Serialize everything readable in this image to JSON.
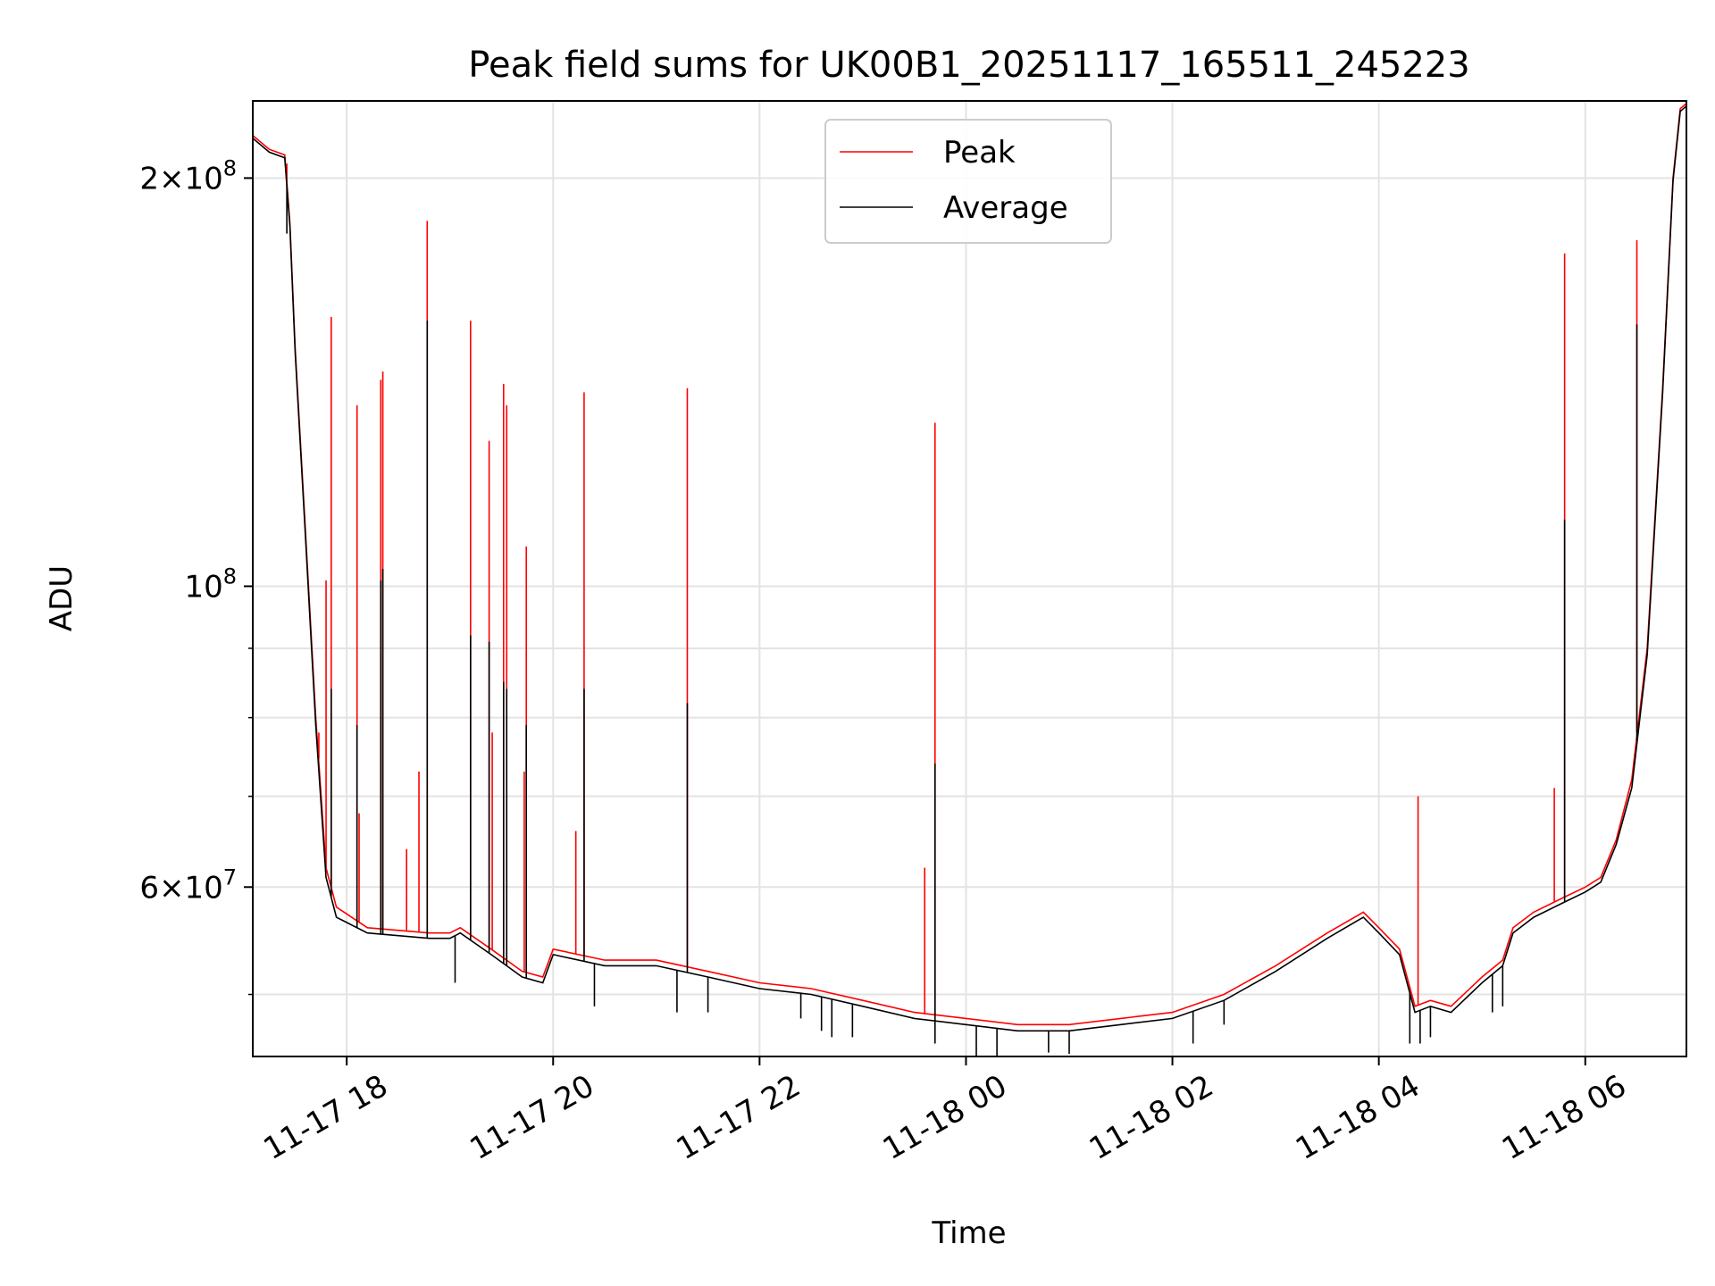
{
  "chart_data": {
    "type": "line",
    "title": "Peak field sums for UK00B1_20251117_165511_245223",
    "xlabel": "Time",
    "ylabel": "ADU",
    "yscale": "log",
    "ylim": [
      45000000,
      228000000
    ],
    "xlim_hours": [
      17.09,
      30.98
    ],
    "grid": true,
    "legend_position": "top-center",
    "x_ticks": [
      {
        "hour": 18,
        "label": "11-17 18"
      },
      {
        "hour": 20,
        "label": "11-17 20"
      },
      {
        "hour": 22,
        "label": "11-17 22"
      },
      {
        "hour": 24,
        "label": "11-18 00"
      },
      {
        "hour": 26,
        "label": "11-18 02"
      },
      {
        "hour": 28,
        "label": "11-18 04"
      },
      {
        "hour": 30,
        "label": "11-18 06"
      }
    ],
    "y_major_ticks": [
      {
        "value": 60000000,
        "mant": "6",
        "exp": "7"
      },
      {
        "value": 100000000,
        "mant": "",
        "exp": "8"
      },
      {
        "value": 200000000,
        "mant": "2",
        "exp": "8"
      }
    ],
    "y_minor_ticks": [
      50000000,
      70000000,
      80000000,
      90000000
    ],
    "series": [
      {
        "name": "Peak",
        "color": "#ff0000",
        "baseline": [
          [
            17.09,
            215
          ],
          [
            17.25,
            210
          ],
          [
            17.4,
            208
          ],
          [
            17.45,
            185
          ],
          [
            17.5,
            150
          ],
          [
            17.6,
            110
          ],
          [
            17.7,
            80
          ],
          [
            17.8,
            62
          ],
          [
            17.9,
            58
          ],
          [
            18.2,
            56
          ],
          [
            18.8,
            55.5
          ],
          [
            19.0,
            55.5
          ],
          [
            19.1,
            56
          ],
          [
            19.4,
            54
          ],
          [
            19.7,
            52
          ],
          [
            19.9,
            51.5
          ],
          [
            20.0,
            54
          ],
          [
            20.5,
            53
          ],
          [
            21.0,
            53
          ],
          [
            21.5,
            52
          ],
          [
            22.0,
            51
          ],
          [
            22.5,
            50.5
          ],
          [
            23.0,
            49.5
          ],
          [
            23.5,
            48.5
          ],
          [
            24.0,
            48
          ],
          [
            24.5,
            47.5
          ],
          [
            25.0,
            47.5
          ],
          [
            25.5,
            48
          ],
          [
            26.0,
            48.5
          ],
          [
            26.5,
            50
          ],
          [
            27.0,
            52.5
          ],
          [
            27.5,
            55.5
          ],
          [
            27.85,
            57.5
          ],
          [
            28.0,
            56
          ],
          [
            28.2,
            54
          ],
          [
            28.35,
            49
          ],
          [
            28.5,
            49.5
          ],
          [
            28.7,
            49
          ],
          [
            29.0,
            51.5
          ],
          [
            29.2,
            53
          ],
          [
            29.3,
            56
          ],
          [
            29.5,
            57.5
          ],
          [
            29.8,
            59
          ],
          [
            30.0,
            60
          ],
          [
            30.15,
            61
          ],
          [
            30.3,
            65
          ],
          [
            30.45,
            72
          ],
          [
            30.6,
            90
          ],
          [
            30.75,
            140
          ],
          [
            30.85,
            200
          ],
          [
            30.92,
            225
          ],
          [
            30.98,
            227
          ]
        ],
        "spikes": [
          [
            17.42,
            205
          ],
          [
            17.85,
            158
          ],
          [
            18.1,
            136
          ],
          [
            18.33,
            142
          ],
          [
            18.35,
            144
          ],
          [
            18.78,
            186
          ],
          [
            19.2,
            157
          ],
          [
            19.38,
            128
          ],
          [
            19.52,
            141
          ],
          [
            19.55,
            136
          ],
          [
            19.74,
            107
          ],
          [
            20.3,
            139
          ],
          [
            21.3,
            140
          ],
          [
            23.7,
            132
          ],
          [
            29.8,
            176
          ],
          [
            30.5,
            180
          ],
          [
            17.73,
            78
          ],
          [
            17.8,
            101
          ],
          [
            18.12,
            68
          ],
          [
            18.7,
            73
          ],
          [
            18.58,
            64
          ],
          [
            19.41,
            78
          ],
          [
            19.72,
            73
          ],
          [
            20.22,
            66
          ],
          [
            23.6,
            62
          ],
          [
            28.38,
            70
          ],
          [
            29.7,
            71
          ]
        ]
      },
      {
        "name": "Average",
        "color": "#000000",
        "baseline": [
          [
            17.09,
            214
          ],
          [
            17.25,
            209
          ],
          [
            17.4,
            207
          ],
          [
            17.45,
            184
          ],
          [
            17.5,
            149
          ],
          [
            17.6,
            109
          ],
          [
            17.7,
            79
          ],
          [
            17.8,
            61
          ],
          [
            17.9,
            57
          ],
          [
            18.2,
            55.5
          ],
          [
            18.8,
            55
          ],
          [
            19.0,
            55
          ],
          [
            19.1,
            55.5
          ],
          [
            19.4,
            53.5
          ],
          [
            19.7,
            51.5
          ],
          [
            19.9,
            51
          ],
          [
            20.0,
            53.5
          ],
          [
            20.5,
            52.5
          ],
          [
            21.0,
            52.5
          ],
          [
            21.5,
            51.5
          ],
          [
            22.0,
            50.5
          ],
          [
            22.5,
            50
          ],
          [
            23.0,
            49
          ],
          [
            23.5,
            48
          ],
          [
            24.0,
            47.5
          ],
          [
            24.5,
            47
          ],
          [
            25.0,
            47
          ],
          [
            25.5,
            47.5
          ],
          [
            26.0,
            48
          ],
          [
            26.5,
            49.5
          ],
          [
            27.0,
            52
          ],
          [
            27.5,
            55
          ],
          [
            27.85,
            57
          ],
          [
            28.0,
            55.5
          ],
          [
            28.2,
            53.5
          ],
          [
            28.35,
            48.5
          ],
          [
            28.5,
            49
          ],
          [
            28.7,
            48.5
          ],
          [
            29.0,
            51
          ],
          [
            29.2,
            52.5
          ],
          [
            29.3,
            55.5
          ],
          [
            29.5,
            57
          ],
          [
            29.8,
            58.5
          ],
          [
            30.0,
            59.5
          ],
          [
            30.15,
            60.5
          ],
          [
            30.3,
            64.5
          ],
          [
            30.45,
            71
          ],
          [
            30.6,
            89
          ],
          [
            30.75,
            139
          ],
          [
            30.85,
            199
          ],
          [
            30.92,
            224
          ],
          [
            30.98,
            226
          ]
        ],
        "spikes": [
          [
            17.42,
            182
          ],
          [
            17.85,
            84
          ],
          [
            18.1,
            79
          ],
          [
            18.33,
            101
          ],
          [
            18.35,
            103
          ],
          [
            18.78,
            157
          ],
          [
            19.2,
            92
          ],
          [
            19.38,
            91
          ],
          [
            19.52,
            85
          ],
          [
            19.55,
            84
          ],
          [
            19.74,
            79
          ],
          [
            20.3,
            84
          ],
          [
            21.3,
            82
          ],
          [
            23.7,
            74
          ],
          [
            29.8,
            112
          ],
          [
            30.5,
            156
          ]
        ],
        "dips": [
          [
            19.05,
            51
          ],
          [
            20.4,
            49
          ],
          [
            21.2,
            48.5
          ],
          [
            21.5,
            48.5
          ],
          [
            22.4,
            48
          ],
          [
            22.6,
            47
          ],
          [
            22.7,
            46.5
          ],
          [
            22.9,
            46.5
          ],
          [
            23.7,
            46
          ],
          [
            24.1,
            45
          ],
          [
            24.3,
            45
          ],
          [
            24.8,
            45.3
          ],
          [
            25.0,
            45.2
          ],
          [
            26.2,
            46
          ],
          [
            26.5,
            47.5
          ],
          [
            28.3,
            46
          ],
          [
            28.4,
            46
          ],
          [
            28.5,
            46.5
          ],
          [
            29.1,
            48.5
          ],
          [
            29.2,
            49
          ]
        ]
      }
    ]
  }
}
